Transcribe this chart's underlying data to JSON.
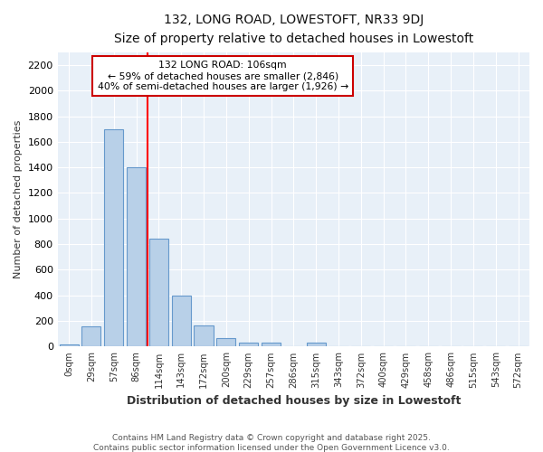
{
  "title1": "132, LONG ROAD, LOWESTOFT, NR33 9DJ",
  "title2": "Size of property relative to detached houses in Lowestoft",
  "xlabel": "Distribution of detached houses by size in Lowestoft",
  "ylabel": "Number of detached properties",
  "bar_labels": [
    "0sqm",
    "29sqm",
    "57sqm",
    "86sqm",
    "114sqm",
    "143sqm",
    "172sqm",
    "200sqm",
    "229sqm",
    "257sqm",
    "286sqm",
    "315sqm",
    "343sqm",
    "372sqm",
    "400sqm",
    "429sqm",
    "458sqm",
    "486sqm",
    "515sqm",
    "543sqm",
    "572sqm"
  ],
  "bar_values": [
    15,
    155,
    1700,
    1400,
    840,
    400,
    165,
    65,
    30,
    30,
    0,
    30,
    0,
    0,
    0,
    0,
    0,
    0,
    0,
    0,
    0
  ],
  "bar_color": "#b8d0e8",
  "bar_edgecolor": "#6699cc",
  "bar_width": 0.85,
  "red_line_index": 4.0,
  "annotation_line1": "132 LONG ROAD: 106sqm",
  "annotation_line2": "← 59% of detached houses are smaller (2,846)",
  "annotation_line3": "40% of semi-detached houses are larger (1,926) →",
  "ylim": [
    0,
    2300
  ],
  "yticks": [
    0,
    200,
    400,
    600,
    800,
    1000,
    1200,
    1400,
    1600,
    1800,
    2000,
    2200
  ],
  "plot_bg_color": "#e8f0f8",
  "fig_bg_color": "#ffffff",
  "grid_color": "#ffffff",
  "footer1": "Contains HM Land Registry data © Crown copyright and database right 2025.",
  "footer2": "Contains public sector information licensed under the Open Government Licence v3.0."
}
